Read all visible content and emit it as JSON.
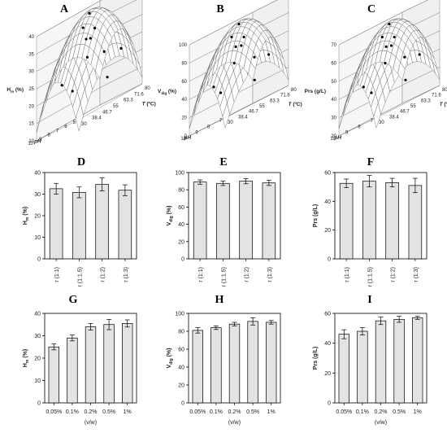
{
  "chart_data": [
    {
      "id": "A",
      "type": "surface",
      "panel_label": "A",
      "zlabel": "H",
      "zlabel_sub": "m",
      "zlabel_unit": " (%)",
      "xlabel": "pH",
      "ylabel": "T",
      "ylabel_unit": " (ºC)",
      "z_ticks": [
        "10",
        "15",
        "20",
        "25",
        "30",
        "35",
        "40"
      ],
      "x_ticks": [
        "10",
        "9",
        "8",
        "7",
        "6",
        "5"
      ],
      "y_ticks": [
        "30",
        "38.4",
        "46.7",
        "55",
        "63.3",
        "71.6",
        "80"
      ],
      "zlim": [
        10,
        40
      ]
    },
    {
      "id": "B",
      "type": "surface",
      "panel_label": "B",
      "zlabel": "V",
      "zlabel_sub": "dig",
      "zlabel_unit": " (%)",
      "xlabel": "pH",
      "ylabel": "T",
      "ylabel_unit": " (ºC)",
      "z_ticks": [
        "0",
        "20",
        "40",
        "60",
        "80",
        "100"
      ],
      "x_ticks": [
        "10",
        "9",
        "8",
        "7"
      ],
      "y_ticks": [
        "30",
        "38.4",
        "46.7",
        "55",
        "63.3",
        "71.6",
        "80"
      ],
      "zlim": [
        0,
        100
      ]
    },
    {
      "id": "C",
      "type": "surface",
      "panel_label": "C",
      "zlabel": "Prs (g/L)",
      "xlabel": "pH",
      "ylabel": "T",
      "ylabel_unit": " (ºC)",
      "z_ticks": [
        "20",
        "30",
        "40",
        "50",
        "60",
        "70"
      ],
      "x_ticks": [
        "10",
        "9",
        "8",
        "7"
      ],
      "y_ticks": [
        "30",
        "38.4",
        "46.7",
        "55",
        "63.3",
        "71.6",
        "80"
      ],
      "zlim": [
        20,
        70
      ]
    },
    {
      "id": "D",
      "type": "bar",
      "panel_label": "D",
      "ylabel": "H",
      "ylabel_sub": "m",
      "ylabel_unit": " (%)",
      "xlabel": "",
      "categories": [
        "r (1:1)",
        "r (1:1.5)",
        "r (1:2)",
        "r (1:3)"
      ],
      "values": [
        32.5,
        30.8,
        34.5,
        31.8
      ],
      "errors": [
        2.5,
        2.5,
        3.0,
        2.5
      ],
      "ylim": [
        0,
        40
      ],
      "yticks": [
        "0",
        "10",
        "20",
        "30",
        "40"
      ]
    },
    {
      "id": "E",
      "type": "bar",
      "panel_label": "E",
      "ylabel": "V",
      "ylabel_sub": "dig",
      "ylabel_unit": " (%)",
      "xlabel": "",
      "categories": [
        "r (1:1)",
        "r (1:1.5)",
        "r (1:2)",
        "r (1:3)"
      ],
      "values": [
        89,
        87.5,
        90,
        88
      ],
      "errors": [
        2.5,
        2.5,
        3.0,
        3.0
      ],
      "ylim": [
        0,
        100
      ],
      "yticks": [
        "0",
        "20",
        "40",
        "60",
        "80",
        "100"
      ]
    },
    {
      "id": "F",
      "type": "bar",
      "panel_label": "F",
      "ylabel": "Prs (g/L)",
      "xlabel": "",
      "categories": [
        "r (1:1)",
        "r (1:1.5)",
        "r (1:2)",
        "r (1:3)"
      ],
      "values": [
        52.5,
        54,
        53,
        51
      ],
      "errors": [
        3.0,
        4.0,
        3.0,
        5.0
      ],
      "ylim": [
        0,
        60
      ],
      "yticks": [
        "0",
        "20",
        "40",
        "60"
      ]
    },
    {
      "id": "G",
      "type": "bar",
      "panel_label": "G",
      "ylabel": "H",
      "ylabel_sub": "m",
      "ylabel_unit": " (%)",
      "xlabel": "(v/w)",
      "categories": [
        "0.05%",
        "0.1%",
        "0.2%",
        "0.5%",
        "1%"
      ],
      "values": [
        25,
        29,
        34,
        35,
        35.5
      ],
      "errors": [
        1.3,
        1.3,
        1.5,
        2.3,
        1.6
      ],
      "ylim": [
        0,
        40
      ],
      "yticks": [
        "0",
        "10",
        "20",
        "30",
        "40"
      ]
    },
    {
      "id": "H",
      "type": "bar",
      "panel_label": "H",
      "ylabel": "V",
      "ylabel_sub": "dig",
      "ylabel_unit": " (%)",
      "xlabel": "(v/w)",
      "categories": [
        "0.05%",
        "0.1%",
        "0.2%",
        "0.5%",
        "1%"
      ],
      "values": [
        81,
        84,
        88,
        91,
        90
      ],
      "errors": [
        3.0,
        2.0,
        2.0,
        4.0,
        2.0
      ],
      "ylim": [
        0,
        100
      ],
      "yticks": [
        "0",
        "20",
        "40",
        "60",
        "80",
        "100"
      ]
    },
    {
      "id": "I",
      "type": "bar",
      "panel_label": "I",
      "ylabel": "Prs (g/L)",
      "xlabel": "(v/w)",
      "categories": [
        "0.05%",
        "0.1%",
        "0.2%",
        "0.5%",
        "1%"
      ],
      "values": [
        46,
        48,
        55,
        56,
        57
      ],
      "errors": [
        3.0,
        2.5,
        2.5,
        2.0,
        1.0
      ],
      "ylim": [
        0,
        60
      ],
      "yticks": [
        "0",
        "20",
        "40",
        "60"
      ]
    }
  ],
  "colors": {
    "bar_fill": "#e3e3e3",
    "stroke": "#000000",
    "surface_line": "#555555",
    "point": "#000000"
  }
}
